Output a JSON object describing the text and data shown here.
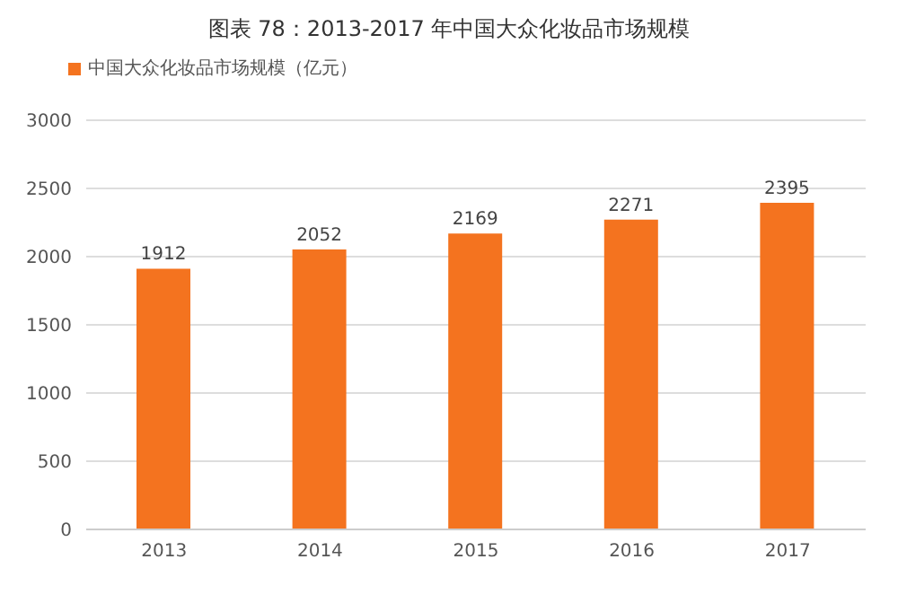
{
  "chart_data": {
    "type": "bar",
    "title": "图表 78：2013-2017 年中国大众化妆品市场规模",
    "categories": [
      "2013",
      "2014",
      "2015",
      "2016",
      "2017"
    ],
    "series": [
      {
        "name": "中国大众化妆品市场规模（亿元）",
        "color": "#f4731f",
        "values": [
          1912,
          2052,
          2169,
          2271,
          2395
        ]
      }
    ],
    "ylim": [
      0,
      3000
    ],
    "yticks": [
      0,
      500,
      1000,
      1500,
      2000,
      2500,
      3000
    ],
    "grid": "y",
    "legend": "top left",
    "data_labels": true
  }
}
